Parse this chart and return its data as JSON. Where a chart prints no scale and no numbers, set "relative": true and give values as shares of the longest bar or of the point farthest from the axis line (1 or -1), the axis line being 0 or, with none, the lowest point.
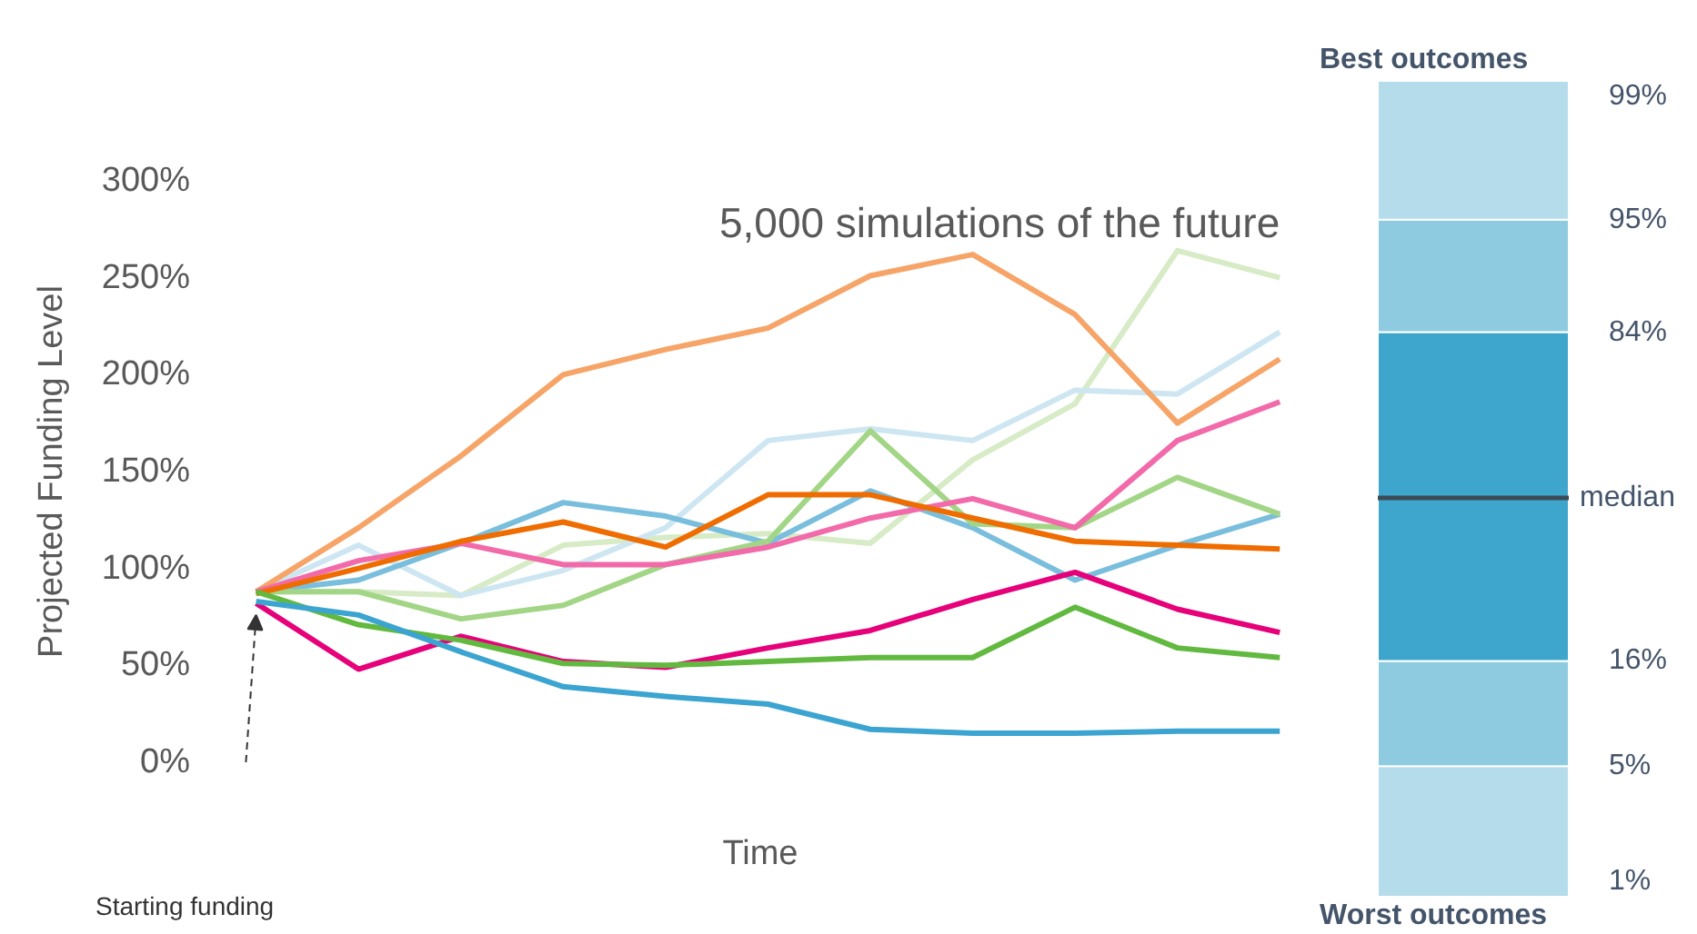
{
  "chart_data": [
    {
      "type": "line",
      "title": "5,000 simulations of the future",
      "xlabel": "Time",
      "ylabel": "Projected Funding Level",
      "categories": [
        null,
        null,
        null,
        null,
        null,
        null,
        null,
        null,
        null,
        null,
        null
      ],
      "ylim": [
        0,
        300
      ],
      "yticks": [
        {
          "value": 0,
          "label": "0%"
        },
        {
          "value": 50,
          "label": "50%"
        },
        {
          "value": 100,
          "label": "100%"
        },
        {
          "value": 150,
          "label": "150%"
        },
        {
          "value": 200,
          "label": "200%"
        },
        {
          "value": 250,
          "label": "250%"
        },
        {
          "value": 300,
          "label": "300%"
        }
      ],
      "grid": false,
      "marker": "none",
      "line_style": "solid",
      "annotations": [
        "Starting funding"
      ],
      "series": [
        {
          "color": "#d6ebc6",
          "values": [
            88,
            88,
            86,
            112,
            116,
            118,
            113,
            156,
            185,
            264,
            250
          ]
        },
        {
          "color": "#cde6f2",
          "values": [
            88,
            112,
            86,
            99,
            121,
            166,
            172,
            166,
            192,
            190,
            222
          ]
        },
        {
          "color": "#f6a467",
          "values": [
            88,
            121,
            158,
            200,
            213,
            224,
            251,
            262,
            231,
            175,
            208
          ]
        },
        {
          "color": "#79bedd",
          "values": [
            88,
            94,
            113,
            134,
            127,
            113,
            140,
            121,
            94,
            112,
            128
          ]
        },
        {
          "color": "#a3d586",
          "values": [
            88,
            88,
            74,
            81,
            102,
            114,
            171,
            123,
            121,
            147,
            128
          ]
        },
        {
          "color": "#f26aa9",
          "values": [
            88,
            104,
            113,
            102,
            102,
            111,
            126,
            136,
            121,
            166,
            186
          ]
        },
        {
          "color": "#ef6c00",
          "values": [
            87,
            100,
            114,
            124,
            111,
            138,
            138,
            126,
            114,
            112,
            110
          ]
        },
        {
          "color": "#e6007a",
          "values": [
            82,
            48,
            65,
            52,
            49,
            59,
            68,
            84,
            98,
            79,
            67
          ]
        },
        {
          "color": "#62b93f",
          "values": [
            88,
            71,
            63,
            51,
            50,
            52,
            54,
            54,
            80,
            59,
            54
          ]
        },
        {
          "color": "#3ba4d0",
          "values": [
            83,
            76,
            57,
            39,
            34,
            30,
            17,
            15,
            15,
            16,
            16
          ]
        }
      ]
    },
    {
      "type": "bar",
      "stacked": true,
      "title": "Best outcomes",
      "xlabel": "Worst outcomes",
      "relative": true,
      "annotations": [
        "1%",
        "5%",
        "16%",
        "84%",
        "95%",
        "99%"
      ],
      "categories": [
        null
      ],
      "series": [
        {
          "color": "#b4dcea",
          "values": [
            0.16
          ]
        },
        {
          "color": "#8ecae0",
          "values": [
            0.129
          ]
        },
        {
          "color": "#3ea6cc",
          "values": [
            0.403
          ]
        },
        {
          "color": "#8ecae0",
          "values": [
            0.138
          ]
        },
        {
          "color": "#b4dcea",
          "values": [
            0.17
          ]
        }
      ],
      "ref_lines": [
        {
          "axis": "y",
          "value": 0.489,
          "label": "median",
          "color": "#3d4a55"
        }
      ]
    }
  ]
}
